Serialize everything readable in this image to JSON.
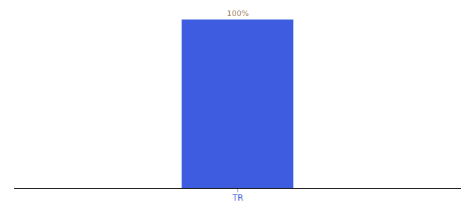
{
  "chart_data": {
    "type": "bar",
    "categories": [
      "TR"
    ],
    "values": [
      100
    ],
    "value_labels": [
      "100%"
    ],
    "color": "#3d5ce0",
    "ylim": [
      0,
      100
    ],
    "data_labels": true,
    "tick_labels": "x",
    "grid": false
  }
}
